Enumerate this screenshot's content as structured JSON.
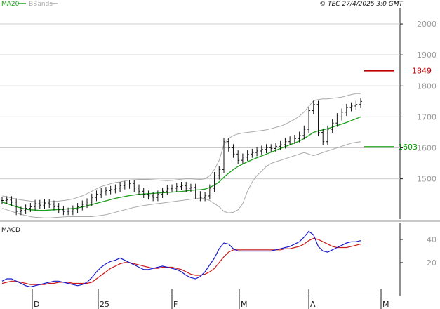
{
  "header": {
    "legend": [
      {
        "label": "MA20",
        "color": "#1aa01a"
      },
      {
        "label": "BBands",
        "color": "#aaaaaa"
      }
    ],
    "copyright": "© TEC 27/4/2025 3:0 GMT"
  },
  "colors": {
    "price_bar": "#111111",
    "ma20": "#1aa01a",
    "bbands": "#aaaaaa",
    "resistance": "#c00000",
    "support": "#009900",
    "macd": "#1a1acc",
    "signal": "#cc1a1a",
    "grid": "#cccccc"
  },
  "chart_data": [
    {
      "type": "bar",
      "subtype": "ohlc",
      "panel": "price",
      "ylim": [
        1370,
        2050
      ],
      "yticks": [
        1500,
        1600,
        1700,
        1800,
        1900,
        2000
      ],
      "grid": true,
      "legend_placement": "top-left",
      "x_labels": [
        "D",
        "25",
        "F",
        "M",
        "A",
        "M"
      ],
      "levels": [
        {
          "label": "1849",
          "value": 1849,
          "color": "#c00000"
        },
        {
          "label": "1603",
          "value": 1603,
          "color": "#009900"
        }
      ],
      "series": [
        {
          "name": "Price",
          "values": [
            1430,
            1432,
            1425,
            1395,
            1398,
            1405,
            1410,
            1420,
            1415,
            1422,
            1418,
            1410,
            1400,
            1395,
            1395,
            1402,
            1410,
            1418,
            1425,
            1440,
            1450,
            1458,
            1462,
            1465,
            1470,
            1478,
            1480,
            1485,
            1470,
            1460,
            1450,
            1445,
            1440,
            1450,
            1460,
            1468,
            1470,
            1475,
            1478,
            1470,
            1472,
            1448,
            1440,
            1445,
            1470,
            1510,
            1530,
            1620,
            1600,
            1580,
            1560,
            1570,
            1580,
            1585,
            1590,
            1595,
            1600,
            1598,
            1605,
            1610,
            1620,
            1625,
            1630,
            1640,
            1660,
            1720,
            1740,
            1650,
            1620,
            1660,
            1680,
            1700,
            1715,
            1730,
            1735,
            1740,
            1750
          ]
        },
        {
          "name": "MA20",
          "values": [
            1425,
            1420,
            1415,
            1410,
            1406,
            1402,
            1400,
            1399,
            1398,
            1398,
            1399,
            1400,
            1401,
            1402,
            1403,
            1404,
            1406,
            1409,
            1413,
            1417,
            1421,
            1425,
            1429,
            1433,
            1437,
            1440,
            1443,
            1446,
            1448,
            1450,
            1451,
            1452,
            1453,
            1454,
            1455,
            1456,
            1457,
            1458,
            1459,
            1461,
            1463,
            1464,
            1465,
            1467,
            1472,
            1480,
            1490,
            1505,
            1518,
            1530,
            1540,
            1548,
            1555,
            1562,
            1568,
            1574,
            1580,
            1586,
            1592,
            1598,
            1604,
            1610,
            1616,
            1622,
            1630,
            1640,
            1650,
            1655,
            1658,
            1662,
            1667,
            1672,
            1677,
            1682,
            1688,
            1694,
            1700
          ]
        },
        {
          "name": "BB Upper",
          "values": [
            1445,
            1442,
            1438,
            1435,
            1432,
            1430,
            1428,
            1426,
            1425,
            1425,
            1426,
            1427,
            1428,
            1430,
            1432,
            1435,
            1440,
            1445,
            1452,
            1460,
            1468,
            1475,
            1480,
            1484,
            1488,
            1490,
            1493,
            1496,
            1497,
            1498,
            1498,
            1498,
            1497,
            1496,
            1495,
            1494,
            1495,
            1497,
            1499,
            1500,
            1500,
            1499,
            1498,
            1500,
            1510,
            1530,
            1560,
            1610,
            1630,
            1640,
            1645,
            1648,
            1650,
            1652,
            1654,
            1656,
            1658,
            1662,
            1666,
            1670,
            1676,
            1684,
            1692,
            1702,
            1716,
            1734,
            1752,
            1756,
            1758,
            1758,
            1760,
            1762,
            1764,
            1768,
            1772,
            1775,
            1775
          ]
        },
        {
          "name": "BB Lower",
          "values": [
            1405,
            1400,
            1395,
            1390,
            1385,
            1382,
            1378,
            1376,
            1375,
            1374,
            1374,
            1375,
            1376,
            1377,
            1378,
            1378,
            1378,
            1378,
            1378,
            1378,
            1380,
            1382,
            1384,
            1388,
            1392,
            1396,
            1400,
            1404,
            1408,
            1411,
            1414,
            1416,
            1418,
            1420,
            1422,
            1424,
            1426,
            1428,
            1430,
            1432,
            1434,
            1436,
            1438,
            1436,
            1430,
            1420,
            1410,
            1395,
            1390,
            1392,
            1400,
            1420,
            1460,
            1490,
            1510,
            1525,
            1540,
            1550,
            1555,
            1560,
            1565,
            1570,
            1575,
            1580,
            1585,
            1580,
            1575,
            1580,
            1585,
            1590,
            1595,
            1600,
            1605,
            1610,
            1615,
            1618,
            1620
          ]
        }
      ]
    },
    {
      "type": "line",
      "panel": "macd",
      "title": "MACD",
      "ylim": [
        -8,
        54
      ],
      "yticks": [
        20,
        40
      ],
      "grid": false,
      "series": [
        {
          "name": "MACD",
          "values": [
            4,
            6,
            6,
            4,
            2,
            0,
            -1,
            0,
            1,
            2,
            3,
            4,
            4,
            3,
            2,
            1,
            0,
            1,
            3,
            7,
            12,
            16,
            19,
            21,
            22,
            24,
            22,
            20,
            18,
            16,
            14,
            14,
            15,
            16,
            17,
            16,
            15,
            14,
            12,
            9,
            7,
            6,
            8,
            12,
            18,
            24,
            32,
            37,
            36,
            32,
            30,
            30,
            30,
            30,
            30,
            30,
            30,
            30,
            31,
            32,
            33,
            34,
            36,
            38,
            42,
            47,
            44,
            34,
            30,
            29,
            31,
            33,
            35,
            37,
            38,
            38,
            39
          ]
        },
        {
          "name": "Signal",
          "values": [
            2,
            3,
            4,
            4,
            3,
            2,
            1,
            1,
            1,
            1,
            2,
            2,
            3,
            3,
            3,
            2,
            2,
            2,
            2,
            3,
            6,
            9,
            12,
            15,
            17,
            19,
            20,
            20,
            19,
            18,
            17,
            16,
            15,
            15,
            16,
            16,
            16,
            15,
            14,
            12,
            10,
            9,
            9,
            10,
            12,
            15,
            20,
            25,
            29,
            31,
            31,
            31,
            31,
            31,
            31,
            31,
            31,
            31,
            31,
            31,
            32,
            32,
            33,
            34,
            36,
            39,
            41,
            40,
            38,
            36,
            34,
            33,
            33,
            33,
            34,
            35,
            36
          ]
        }
      ]
    }
  ]
}
